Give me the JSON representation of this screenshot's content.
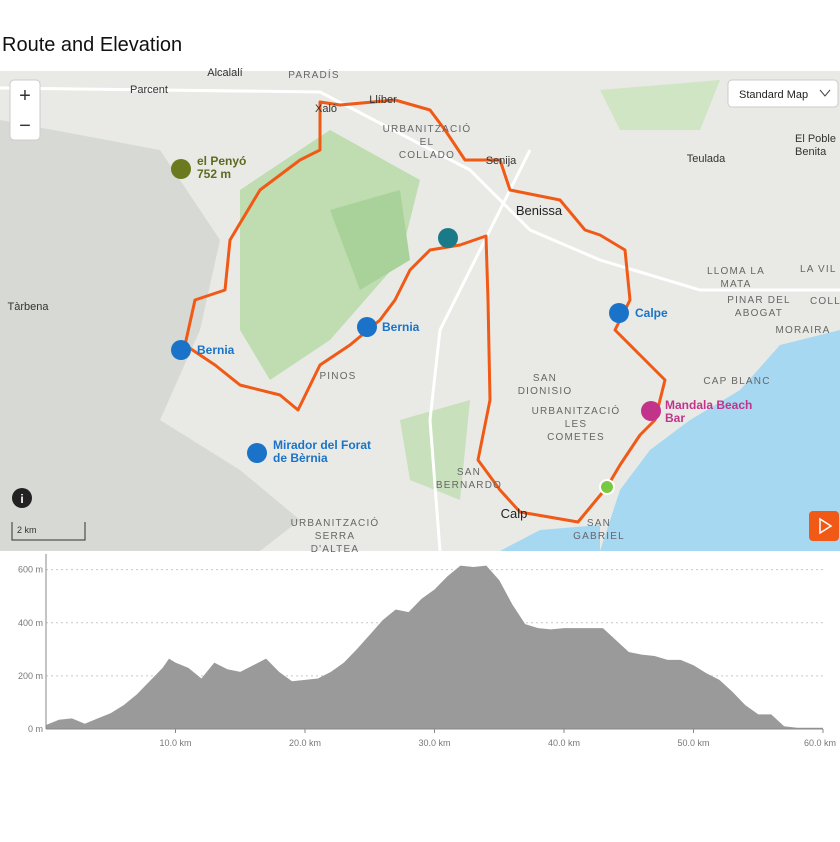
{
  "header": {
    "title": "Route and Elevation"
  },
  "map": {
    "map_type": "Standard Map",
    "zoom_in": "+",
    "zoom_out": "−",
    "scale": "2 km",
    "info": "i",
    "labels": [
      {
        "lines": [
          "Alcalalí"
        ]
      },
      {
        "lines": [
          "PARADÍS"
        ]
      },
      {
        "lines": [
          "Parcent"
        ]
      },
      {
        "lines": [
          "Xaló"
        ]
      },
      {
        "lines": [
          "Llíber"
        ]
      },
      {
        "lines": [
          "URBANITZACIÓ",
          "EL",
          "COLLADO"
        ]
      },
      {
        "lines": [
          "Senija"
        ]
      },
      {
        "lines": [
          "Benissa"
        ]
      },
      {
        "lines": [
          "Teulada"
        ]
      },
      {
        "lines": [
          "El Poble",
          "Benita"
        ]
      },
      {
        "lines": [
          "el Penyó",
          "752 m"
        ]
      },
      {
        "lines": [
          "Tàrbena"
        ]
      },
      {
        "lines": [
          "Bernia"
        ]
      },
      {
        "lines": [
          "Bernia"
        ]
      },
      {
        "lines": [
          "Calpe"
        ]
      },
      {
        "lines": [
          "LLOMA LA",
          "MATA"
        ]
      },
      {
        "lines": [
          "PINAR DEL",
          "ABOGAT"
        ]
      },
      {
        "lines": [
          "MORAIRA"
        ]
      },
      {
        "lines": [
          "LA VIL"
        ]
      },
      {
        "lines": [
          "COLL"
        ]
      },
      {
        "lines": [
          "CAP BLANC"
        ]
      },
      {
        "lines": [
          "SAN",
          "DIONISIO"
        ]
      },
      {
        "lines": [
          "URBANITZACIÓ",
          "LES",
          "COMETES"
        ]
      },
      {
        "lines": [
          "Mandala Beach",
          "Bar"
        ]
      },
      {
        "lines": [
          "PINOS"
        ]
      },
      {
        "lines": [
          "Mirador del Forat",
          "de Bèrnia"
        ]
      },
      {
        "lines": [
          "SAN",
          "BERNARDO"
        ]
      },
      {
        "lines": [
          "Calp"
        ]
      },
      {
        "lines": [
          "SAN",
          "GABRIEL"
        ]
      },
      {
        "lines": [
          "URBANITZACIÓ",
          "SERRA",
          "D'ALTEA"
        ]
      }
    ]
  },
  "chart_data": {
    "type": "area",
    "color": "#9a9a9a",
    "grid": true,
    "x": [
      0,
      1,
      2,
      3,
      4,
      5,
      6,
      7,
      8,
      9,
      9.5,
      10,
      11,
      12,
      13,
      14,
      15,
      16,
      17,
      18,
      19,
      20,
      21,
      22,
      23,
      24,
      25,
      26,
      27,
      28,
      29,
      30,
      31,
      32,
      33,
      34,
      35,
      36,
      37,
      38,
      39,
      40,
      41,
      42,
      43,
      44,
      45,
      46,
      47,
      48,
      49,
      50,
      51,
      52,
      53,
      54,
      55,
      56,
      57,
      58,
      59,
      60
    ],
    "values": [
      15,
      35,
      40,
      20,
      40,
      60,
      90,
      130,
      180,
      230,
      265,
      250,
      230,
      190,
      250,
      225,
      215,
      240,
      265,
      215,
      180,
      185,
      190,
      215,
      250,
      300,
      355,
      410,
      450,
      440,
      490,
      525,
      575,
      615,
      610,
      615,
      560,
      470,
      395,
      380,
      375,
      380,
      380,
      380,
      380,
      335,
      290,
      280,
      275,
      260,
      260,
      240,
      210,
      185,
      140,
      90,
      55,
      55,
      10,
      5,
      5,
      5
    ],
    "xlim": [
      0,
      60
    ],
    "ylim": [
      0,
      640
    ],
    "xticks": [
      {
        "value": 10,
        "label": "10.0 km"
      },
      {
        "value": 20,
        "label": "20.0 km"
      },
      {
        "value": 30,
        "label": "30.0 km"
      },
      {
        "value": 40,
        "label": "40.0 km"
      },
      {
        "value": 50,
        "label": "50.0 km"
      },
      {
        "value": 60,
        "label": "60.0 km"
      }
    ],
    "yticks": [
      {
        "value": 0,
        "label": "0 m"
      },
      {
        "value": 200,
        "label": "200 m"
      },
      {
        "value": 400,
        "label": "400 m"
      },
      {
        "value": 600,
        "label": "600 m"
      }
    ]
  }
}
